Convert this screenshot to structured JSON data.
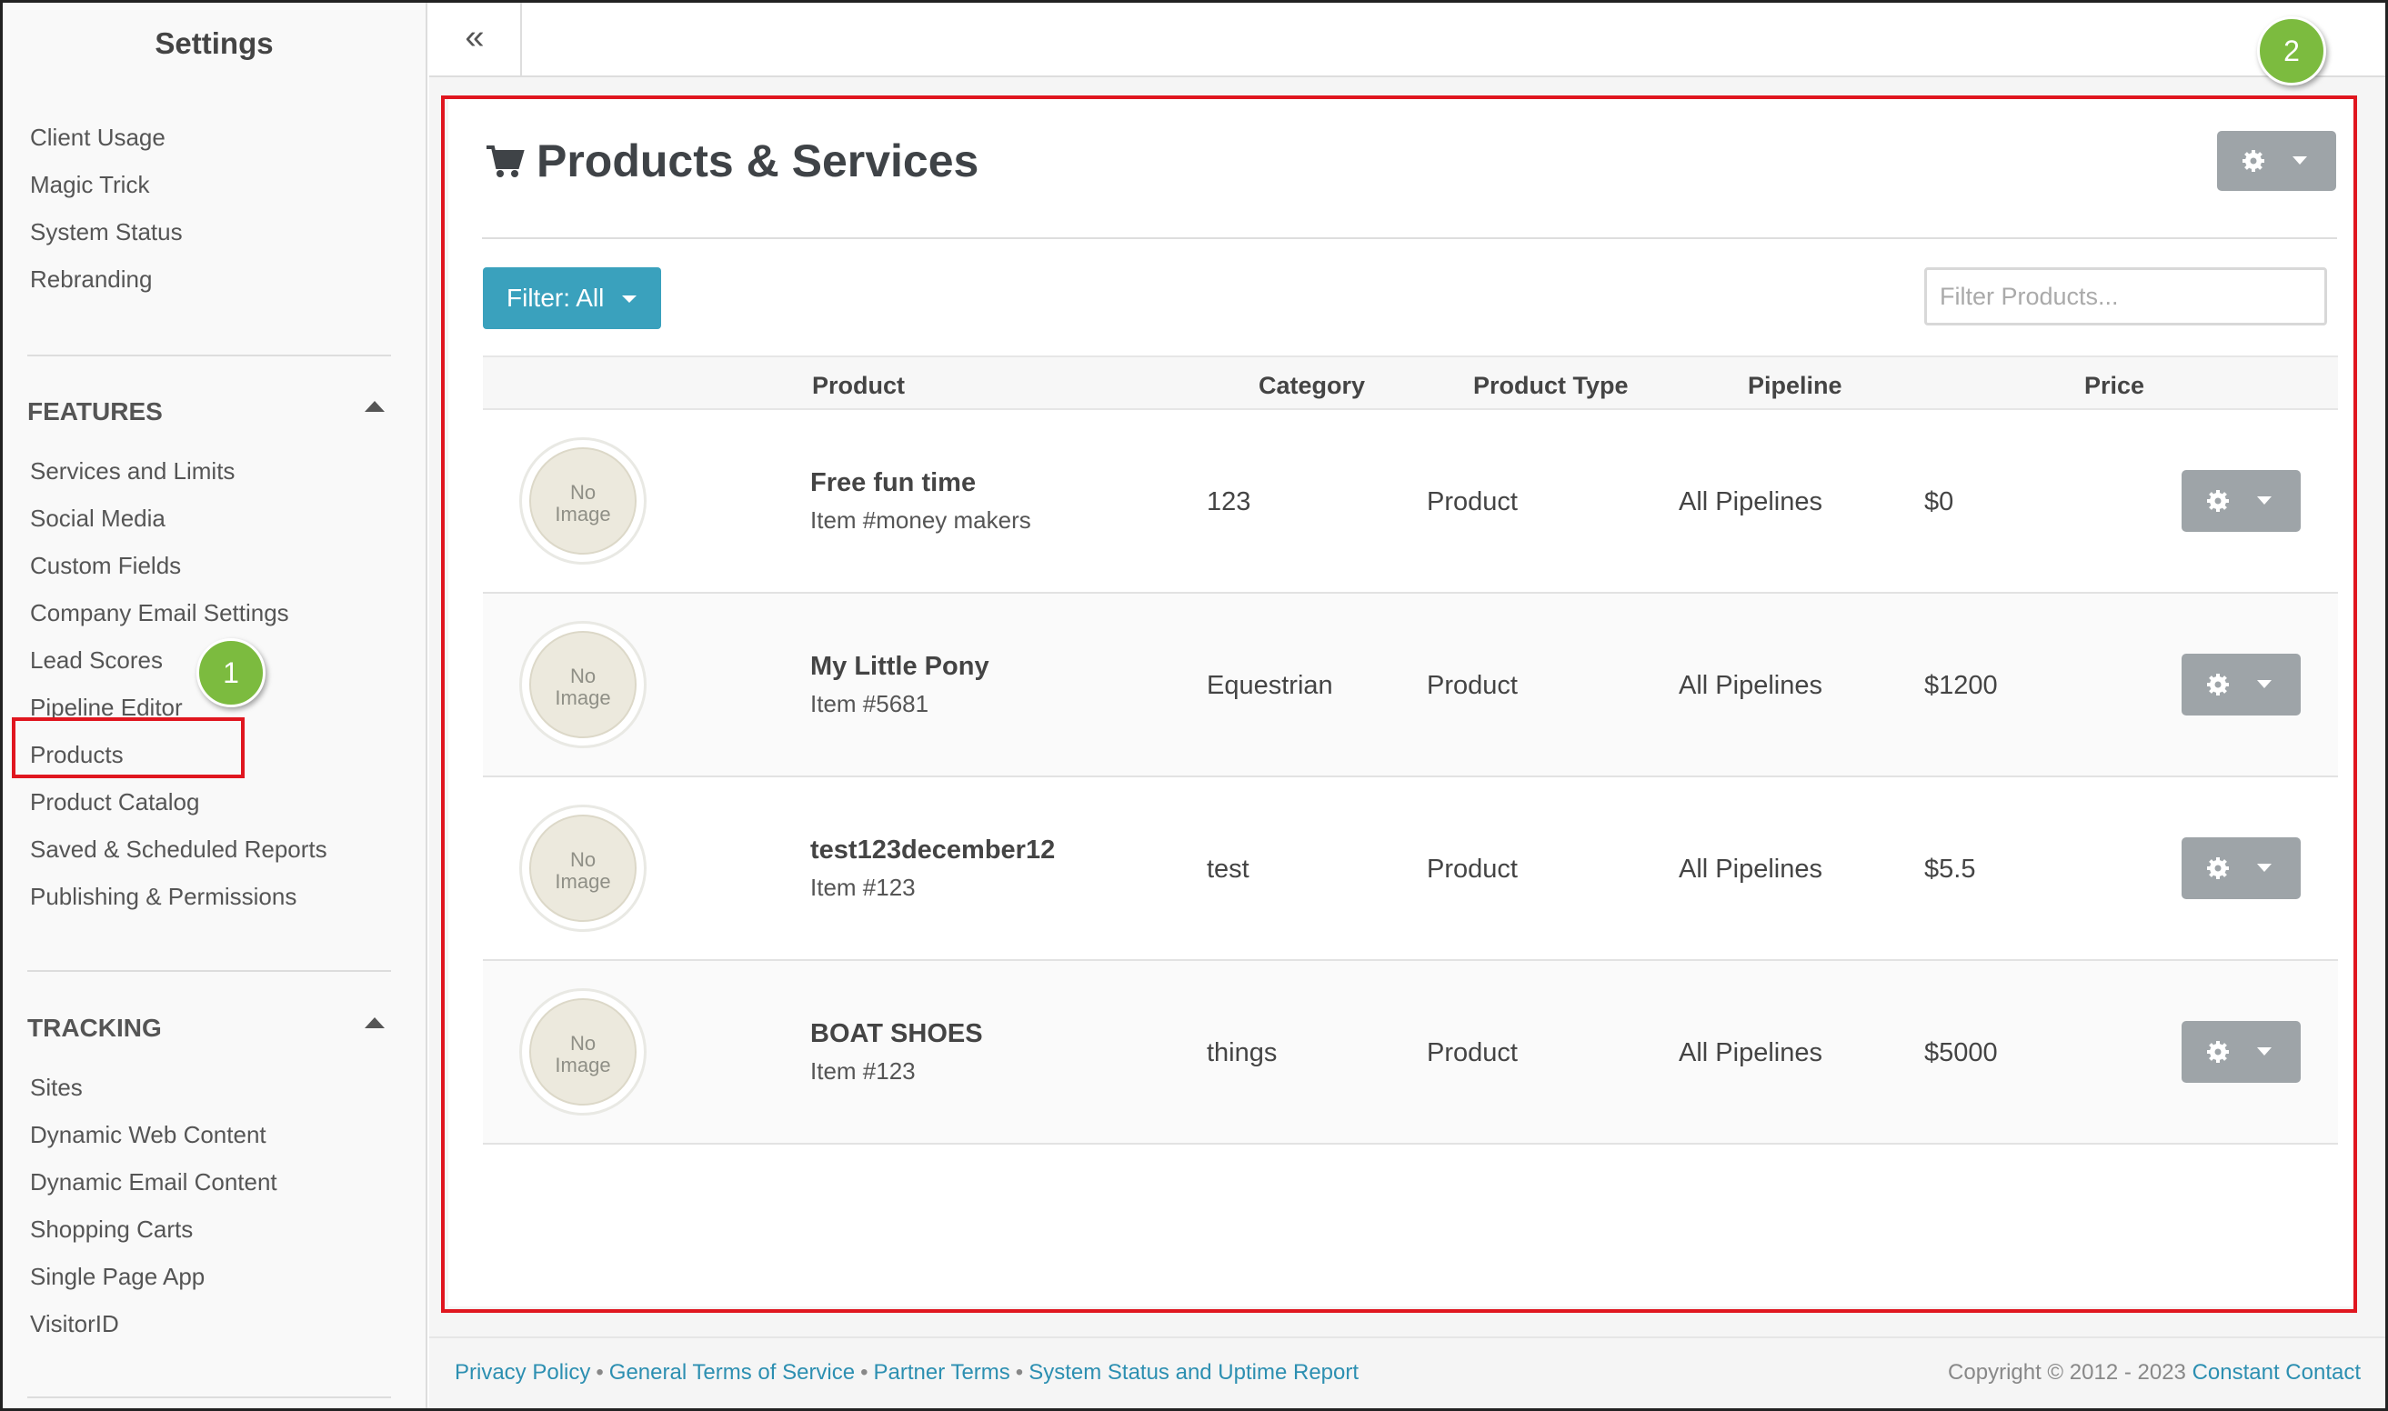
{
  "sidebar": {
    "title": "Settings",
    "top_items": [
      "Client Usage",
      "Magic Trick",
      "System Status",
      "Rebranding"
    ],
    "features": {
      "heading": "FEATURES",
      "items": [
        "Services and Limits",
        "Social Media",
        "Custom Fields",
        "Company Email Settings",
        "Lead Scores",
        "Pipeline Editor",
        "Products",
        "Product Catalog",
        "Saved & Scheduled Reports",
        "Publishing & Permissions"
      ]
    },
    "tracking": {
      "heading": "TRACKING",
      "items": [
        "Sites",
        "Dynamic Web Content",
        "Dynamic Email Content",
        "Shopping Carts",
        "Single Page App",
        "VisitorID"
      ]
    }
  },
  "callouts": {
    "one": "1",
    "two": "2"
  },
  "topbar": {
    "collapse_glyph": "«"
  },
  "main": {
    "title": "Products & Services",
    "filter_button": "Filter: All",
    "filter_placeholder": "Filter Products...",
    "columns": [
      "Product",
      "Category",
      "Product Type",
      "Pipeline",
      "Price"
    ],
    "no_image": [
      "No",
      "Image"
    ],
    "rows": [
      {
        "name": "Free fun time",
        "item": "Item #money makers",
        "category": "123",
        "type": "Product",
        "pipeline": "All Pipelines",
        "price": "$0"
      },
      {
        "name": "My Little Pony",
        "item": "Item #5681",
        "category": "Equestrian",
        "type": "Product",
        "pipeline": "All Pipelines",
        "price": "$1200"
      },
      {
        "name": "test123december12",
        "item": "Item #123",
        "category": "test",
        "type": "Product",
        "pipeline": "All Pipelines",
        "price": "$5.5"
      },
      {
        "name": "BOAT SHOES",
        "item": "Item #123",
        "category": "things",
        "type": "Product",
        "pipeline": "All Pipelines",
        "price": "$5000"
      }
    ]
  },
  "footer": {
    "links": [
      "Privacy Policy",
      "General Terms of Service",
      "Partner Terms",
      "System Status and Uptime Report"
    ],
    "copyright_prefix": "Copyright © 2012 - 2023",
    "copyright_link": "Constant Contact"
  },
  "colors": {
    "accent_teal": "#3aa1bd",
    "link_blue": "#2c8fb1",
    "callout_green": "#7cbb3f",
    "highlight_red": "#e0161f",
    "gear_button_gray": "#9ea4a8"
  },
  "icons": [
    "cart-icon",
    "gear-icon",
    "caret-down-icon",
    "caret-up-icon",
    "double-chevron-left-icon"
  ]
}
